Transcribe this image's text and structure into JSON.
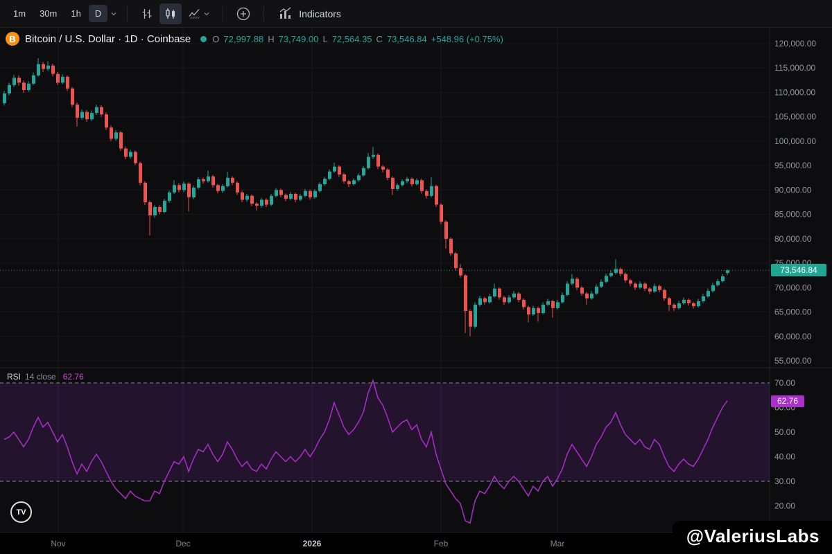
{
  "toolbar": {
    "timeframes": [
      {
        "label": "1m",
        "active": false
      },
      {
        "label": "30m",
        "active": false
      },
      {
        "label": "1h",
        "active": false
      },
      {
        "label": "D",
        "active": true
      }
    ],
    "indicators_label": "Indicators"
  },
  "symbol": {
    "title": "Bitcoin / U.S. Dollar · 1D · Coinbase",
    "ohlc": {
      "o_key": "O",
      "o": "72,997.88",
      "h_key": "H",
      "h": "73,749.00",
      "l_key": "L",
      "l": "72,564.35",
      "c_key": "C",
      "c": "73,546.84",
      "change": "+548.96 (+0.75%)"
    }
  },
  "rsi_header": {
    "name": "RSI",
    "params": "14 close"
  },
  "time_axis": {
    "labels": [
      {
        "text": "Nov",
        "x": 84,
        "strong": false
      },
      {
        "text": "Dec",
        "x": 264,
        "strong": false
      },
      {
        "text": "2026",
        "x": 450,
        "strong": true
      },
      {
        "text": "Feb",
        "x": 636,
        "strong": false
      },
      {
        "text": "Mar",
        "x": 804,
        "strong": false
      }
    ]
  },
  "watermark": "@ValeriusLabs",
  "logo_text": "TV",
  "colors": {
    "up": "#26a69a",
    "down": "#ef5350",
    "rsi_line": "#ab2fcb",
    "rsi_fill": "rgba(125,45,165,0.20)",
    "band_dash": "#82868f",
    "axis_text": "#9598a1",
    "last_price_bg": "#1fa793",
    "bitcoin_orange": "#f7931a"
  },
  "chart_data": [
    {
      "type": "candlestick",
      "title": "Bitcoin / U.S. Dollar 1D Coinbase",
      "ylim": [
        55000,
        120000
      ],
      "grid_step": 5000,
      "last_price": 73546.84,
      "last_price_label": "73,546.84",
      "y_ticks": {
        "values": [
          120000,
          115000,
          110000,
          105000,
          100000,
          95000,
          90000,
          85000,
          80000,
          75000,
          70000,
          65000,
          60000,
          55000
        ],
        "labels": [
          "120,000.00",
          "115,000.00",
          "110,000.00",
          "105,000.00",
          "100,000.00",
          "95,000.00",
          "90,000.00",
          "85,000.00",
          "80,000.00",
          "75,000.00",
          "70,000.00",
          "65,000.00",
          "60,000.00",
          "55,000.00"
        ]
      },
      "candles": [
        [
          107800,
          110300,
          107300,
          109800
        ],
        [
          109800,
          112000,
          109400,
          111500
        ],
        [
          111500,
          113600,
          111100,
          113000
        ],
        [
          113000,
          113500,
          111400,
          112000
        ],
        [
          112000,
          112400,
          109900,
          110500
        ],
        [
          110500,
          112300,
          110100,
          111800
        ],
        [
          111800,
          114100,
          111500,
          113500
        ],
        [
          113500,
          117000,
          113200,
          115800
        ],
        [
          115800,
          116200,
          114200,
          114800
        ],
        [
          114800,
          116400,
          114400,
          115500
        ],
        [
          115500,
          115900,
          113300,
          113800
        ],
        [
          113800,
          114200,
          111500,
          112000
        ],
        [
          112000,
          113700,
          111700,
          113200
        ],
        [
          113200,
          113500,
          110300,
          110800
        ],
        [
          110800,
          111100,
          107000,
          107500
        ],
        [
          107500,
          107900,
          103000,
          104800
        ],
        [
          104800,
          106500,
          104400,
          106000
        ],
        [
          106000,
          106400,
          104000,
          104500
        ],
        [
          104500,
          106300,
          104100,
          105800
        ],
        [
          105800,
          107500,
          105400,
          107000
        ],
        [
          107000,
          107400,
          105000,
          105500
        ],
        [
          105500,
          105900,
          102300,
          102800
        ],
        [
          102800,
          103200,
          100000,
          100500
        ],
        [
          100500,
          102300,
          100100,
          101800
        ],
        [
          101800,
          102100,
          98000,
          98500
        ],
        [
          98500,
          98900,
          96300,
          96800
        ],
        [
          96800,
          98300,
          96400,
          97800
        ],
        [
          97800,
          98100,
          95100,
          95500
        ],
        [
          95500,
          95800,
          91000,
          91500
        ],
        [
          91500,
          91800,
          86900,
          87500
        ],
        [
          87500,
          87800,
          80700,
          84800
        ],
        [
          84800,
          86900,
          84300,
          86500
        ],
        [
          86500,
          86900,
          85000,
          85500
        ],
        [
          85500,
          88200,
          85200,
          87800
        ],
        [
          87800,
          89900,
          87400,
          89500
        ],
        [
          89500,
          92000,
          89200,
          91000
        ],
        [
          91000,
          91400,
          89500,
          90000
        ],
        [
          90000,
          91700,
          89600,
          91300
        ],
        [
          91300,
          91600,
          85600,
          88500
        ],
        [
          88500,
          90900,
          88100,
          90500
        ],
        [
          90500,
          92600,
          90200,
          92200
        ],
        [
          92200,
          92500,
          91300,
          91800
        ],
        [
          91800,
          94000,
          91500,
          92800
        ],
        [
          92800,
          93100,
          90500,
          91000
        ],
        [
          91000,
          91300,
          89300,
          89800
        ],
        [
          89800,
          91200,
          89400,
          90800
        ],
        [
          90800,
          93800,
          90500,
          92500
        ],
        [
          92500,
          92800,
          91000,
          91500
        ],
        [
          91500,
          91800,
          89000,
          89500
        ],
        [
          89500,
          89800,
          87500,
          88000
        ],
        [
          88000,
          89200,
          87600,
          88800
        ],
        [
          88800,
          89100,
          86700,
          87200
        ],
        [
          87200,
          87500,
          85800,
          86800
        ],
        [
          86800,
          88400,
          86400,
          88000
        ],
        [
          88000,
          88300,
          86500,
          87000
        ],
        [
          87000,
          89200,
          86700,
          88800
        ],
        [
          88800,
          90400,
          88500,
          90000
        ],
        [
          90000,
          90300,
          88500,
          89000
        ],
        [
          89000,
          89300,
          87700,
          88200
        ],
        [
          88200,
          89600,
          87900,
          89200
        ],
        [
          89200,
          89500,
          87500,
          88000
        ],
        [
          88000,
          89200,
          87700,
          88800
        ],
        [
          88800,
          90200,
          88500,
          89800
        ],
        [
          89800,
          90100,
          88000,
          88500
        ],
        [
          88500,
          90200,
          88200,
          89800
        ],
        [
          89800,
          91600,
          89500,
          91200
        ],
        [
          91200,
          92700,
          90900,
          92300
        ],
        [
          92300,
          94200,
          92000,
          93800
        ],
        [
          93800,
          95600,
          93500,
          94800
        ],
        [
          94800,
          95100,
          92700,
          93200
        ],
        [
          93200,
          93500,
          91300,
          91800
        ],
        [
          91800,
          92100,
          90600,
          91200
        ],
        [
          91200,
          92400,
          90900,
          92000
        ],
        [
          92000,
          93400,
          91700,
          93000
        ],
        [
          93000,
          94900,
          92700,
          94500
        ],
        [
          94500,
          97600,
          94200,
          96800
        ],
        [
          96800,
          98800,
          96400,
          97200
        ],
        [
          97200,
          97500,
          94300,
          94800
        ],
        [
          94800,
          95100,
          93600,
          94200
        ],
        [
          94200,
          94500,
          92000,
          92500
        ],
        [
          92500,
          92800,
          89000,
          90200
        ],
        [
          90200,
          91400,
          89800,
          91000
        ],
        [
          91000,
          92200,
          90700,
          91800
        ],
        [
          91800,
          92700,
          91400,
          92300
        ],
        [
          92300,
          92600,
          90700,
          91200
        ],
        [
          91200,
          92400,
          90900,
          92000
        ],
        [
          92000,
          92300,
          89300,
          89800
        ],
        [
          89800,
          90100,
          88300,
          88800
        ],
        [
          88800,
          92600,
          88500,
          90800
        ],
        [
          90800,
          91100,
          86500,
          87000
        ],
        [
          87000,
          87300,
          83000,
          83500
        ],
        [
          83500,
          83800,
          78000,
          80000
        ],
        [
          80000,
          80300,
          76500,
          77000
        ],
        [
          77000,
          77300,
          73500,
          74000
        ],
        [
          74000,
          74800,
          72000,
          72500
        ],
        [
          72500,
          72800,
          60700,
          65200
        ],
        [
          65200,
          65500,
          60000,
          62000
        ],
        [
          62000,
          67000,
          61600,
          66500
        ],
        [
          66500,
          68300,
          66100,
          67800
        ],
        [
          67800,
          68100,
          66500,
          67000
        ],
        [
          67000,
          68700,
          66700,
          68200
        ],
        [
          68200,
          70800,
          67900,
          69800
        ],
        [
          69800,
          70100,
          67500,
          68000
        ],
        [
          68000,
          68300,
          66500,
          67000
        ],
        [
          67000,
          68500,
          66700,
          68000
        ],
        [
          68000,
          69300,
          67700,
          68800
        ],
        [
          68800,
          69100,
          67000,
          67500
        ],
        [
          67500,
          67800,
          65500,
          66000
        ],
        [
          66000,
          66300,
          62900,
          64500
        ],
        [
          64500,
          66300,
          64200,
          65800
        ],
        [
          65800,
          66100,
          63000,
          64800
        ],
        [
          64800,
          67000,
          64500,
          66500
        ],
        [
          66500,
          67700,
          66200,
          67200
        ],
        [
          67200,
          67500,
          63800,
          65800
        ],
        [
          65800,
          67500,
          65500,
          67000
        ],
        [
          67000,
          69000,
          66700,
          68500
        ],
        [
          68500,
          71300,
          68200,
          70800
        ],
        [
          70800,
          72800,
          70500,
          71800
        ],
        [
          71800,
          72100,
          69500,
          70000
        ],
        [
          70000,
          70300,
          68300,
          68800
        ],
        [
          68800,
          69100,
          66500,
          67800
        ],
        [
          67800,
          69300,
          67500,
          68800
        ],
        [
          68800,
          70700,
          68500,
          70200
        ],
        [
          70200,
          71700,
          69900,
          71200
        ],
        [
          71200,
          72900,
          70900,
          72400
        ],
        [
          72400,
          73500,
          72100,
          73000
        ],
        [
          73000,
          75800,
          72700,
          73800
        ],
        [
          73800,
          74100,
          72300,
          72800
        ],
        [
          72800,
          73100,
          71000,
          71500
        ],
        [
          71500,
          71800,
          70300,
          70800
        ],
        [
          70800,
          71100,
          69500,
          70000
        ],
        [
          70000,
          71300,
          69700,
          70800
        ],
        [
          70800,
          71100,
          69300,
          69800
        ],
        [
          69800,
          70100,
          68700,
          69200
        ],
        [
          69200,
          70800,
          68900,
          70300
        ],
        [
          70300,
          70600,
          69000,
          69500
        ],
        [
          69500,
          69800,
          67300,
          67800
        ],
        [
          67800,
          68100,
          65200,
          66500
        ],
        [
          66500,
          66800,
          65200,
          65800
        ],
        [
          65800,
          67300,
          65500,
          66800
        ],
        [
          66800,
          68000,
          66500,
          67500
        ],
        [
          67500,
          67800,
          66300,
          66800
        ],
        [
          66800,
          67100,
          65700,
          66200
        ],
        [
          66200,
          67700,
          65900,
          67200
        ],
        [
          67200,
          68700,
          66900,
          68200
        ],
        [
          68200,
          69800,
          67900,
          69300
        ],
        [
          69300,
          71000,
          69000,
          70500
        ],
        [
          70500,
          71800,
          70200,
          71300
        ],
        [
          71300,
          72800,
          71000,
          72300
        ],
        [
          72997.88,
          73749.0,
          72564.35,
          73546.84
        ]
      ]
    },
    {
      "type": "line",
      "name": "RSI",
      "length": 14,
      "source": "close",
      "ylim": [
        10,
        75
      ],
      "upper_band": 70,
      "lower_band": 30,
      "last_value": 62.76,
      "last_label": "62.76",
      "y_ticks": {
        "values": [
          70,
          60,
          50,
          40,
          30,
          20
        ],
        "labels": [
          "70.00",
          "60.00",
          "50.00",
          "40.00",
          "30.00",
          "20.00"
        ]
      },
      "values": [
        47,
        48,
        50,
        47,
        44,
        47,
        52,
        56,
        52,
        54,
        50,
        46,
        49,
        44,
        38,
        33,
        37,
        34,
        38,
        41,
        38,
        34,
        30,
        27,
        25,
        23,
        26,
        24,
        23,
        22,
        22,
        26,
        25,
        30,
        34,
        38,
        37,
        40,
        34,
        39,
        43,
        42,
        45,
        41,
        38,
        41,
        46,
        43,
        39,
        36,
        38,
        35,
        34,
        37,
        35,
        39,
        42,
        40,
        38,
        40,
        38,
        40,
        43,
        40,
        43,
        47,
        50,
        55,
        62,
        57,
        52,
        49,
        51,
        54,
        58,
        66,
        71,
        64,
        61,
        56,
        50,
        52,
        54,
        55,
        51,
        53,
        47,
        44,
        50,
        41,
        35,
        29,
        26,
        23,
        21,
        14,
        13,
        22,
        26,
        25,
        28,
        32,
        29,
        27,
        30,
        32,
        30,
        27,
        24,
        28,
        26,
        30,
        32,
        28,
        31,
        35,
        41,
        45,
        42,
        39,
        36,
        40,
        45,
        48,
        52,
        54,
        58,
        53,
        49,
        47,
        45,
        47,
        44,
        43,
        47,
        45,
        40,
        36,
        34,
        37,
        39,
        37,
        36,
        39,
        43,
        47,
        52,
        56,
        60,
        62.76
      ]
    }
  ]
}
